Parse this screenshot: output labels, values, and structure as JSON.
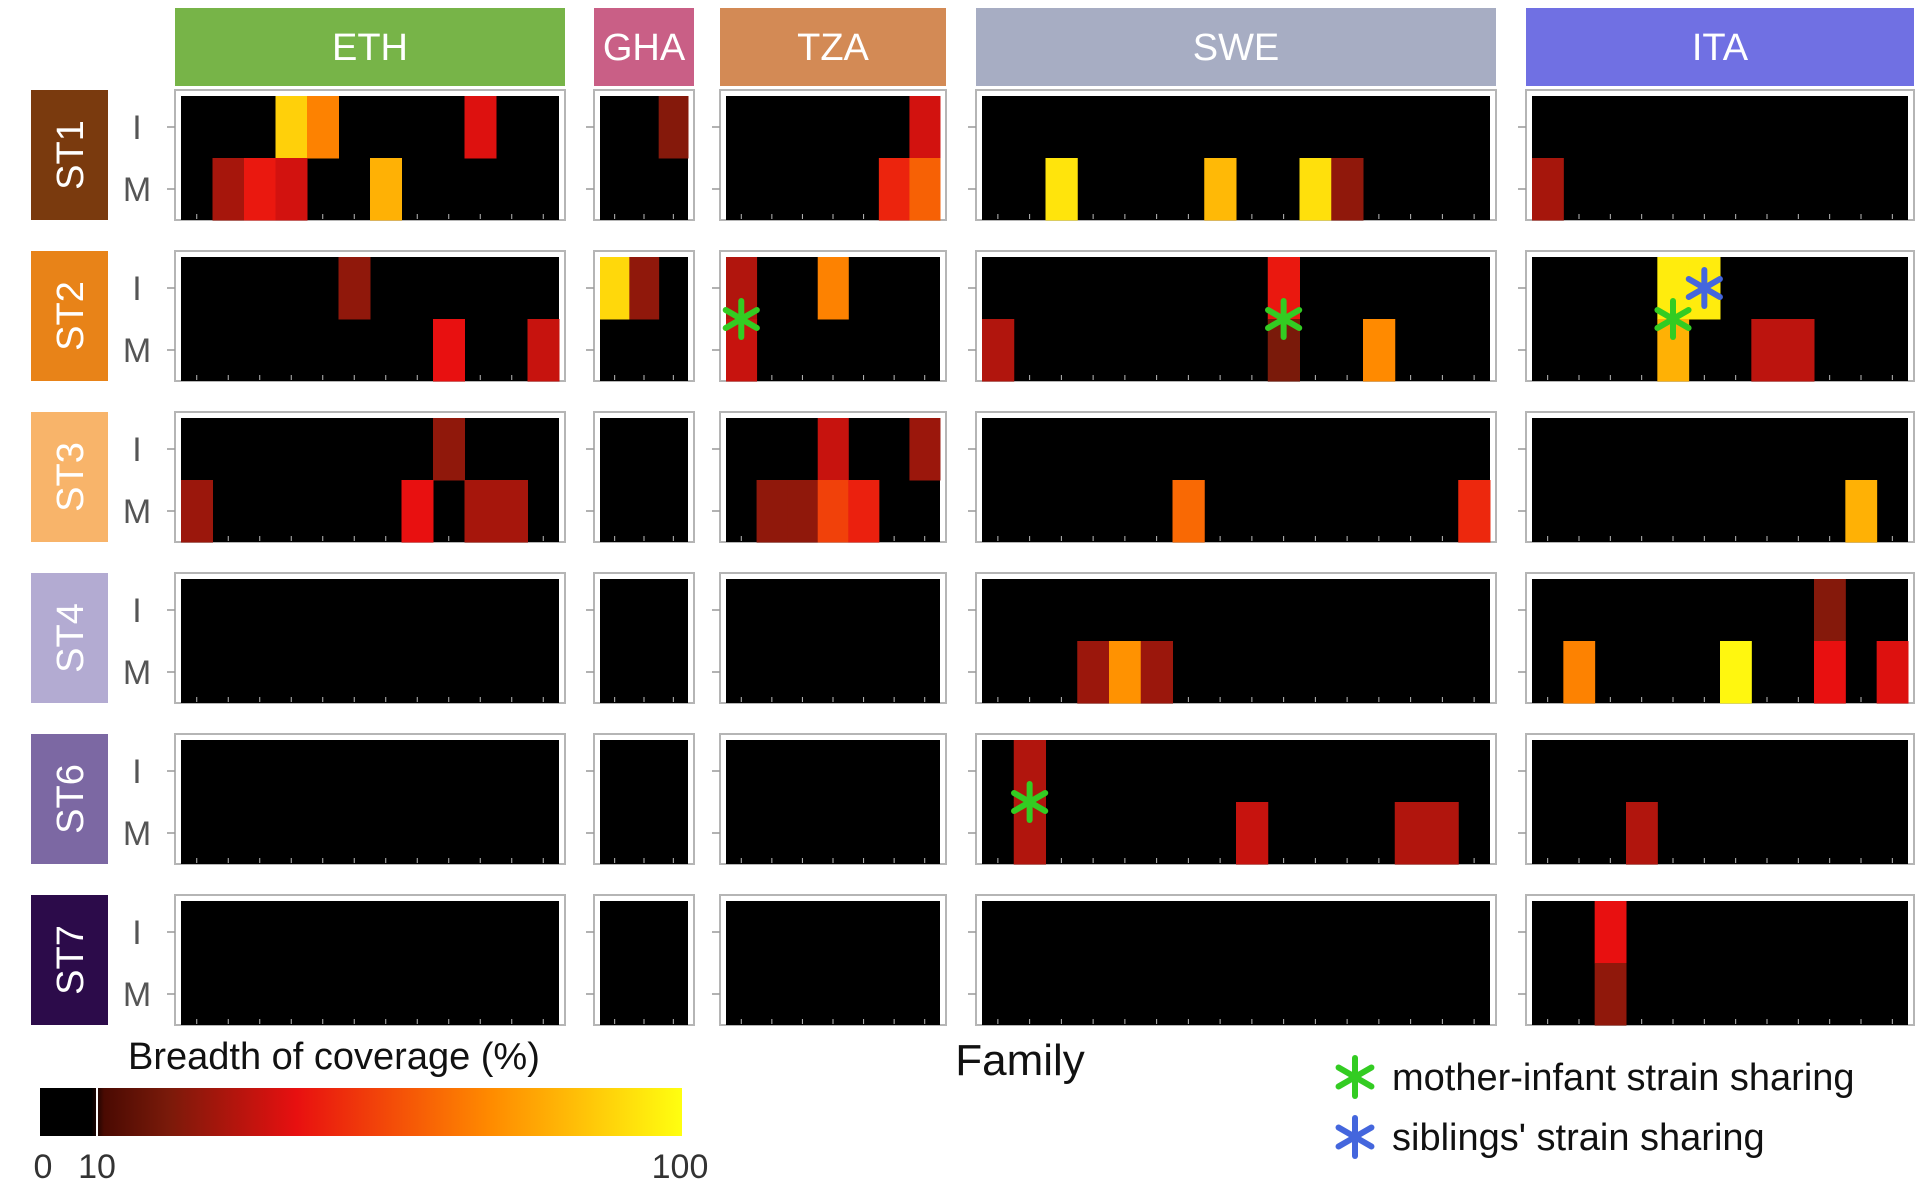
{
  "chart_data": {
    "type": "heatmap",
    "title": "",
    "xlabel": "Family",
    "ylabel": "",
    "value_range": [
      0,
      100
    ],
    "colorbar": {
      "title": "Breadth of coverage (%)",
      "ticks": [
        "0",
        "10",
        "100"
      ],
      "tick_values": [
        0,
        10,
        100
      ],
      "note": "values below 10% shown as black"
    },
    "country_groups": [
      {
        "name": "ETH",
        "color": "#77b448",
        "families": 12
      },
      {
        "name": "GHA",
        "color": "#c95f86",
        "families": 3
      },
      {
        "name": "TZA",
        "color": "#d38a55",
        "families": 7
      },
      {
        "name": "SWE",
        "color": "#a7adc3",
        "families": 16
      },
      {
        "name": "ITA",
        "color": "#7070e3",
        "families": 12
      }
    ],
    "strain_groups": [
      {
        "name": "ST1",
        "color": "#7a3a0e",
        "text_color": "#ffffff"
      },
      {
        "name": "ST2",
        "color": "#e88318",
        "text_color": "#ffffff"
      },
      {
        "name": "ST3",
        "color": "#f8b46a",
        "text_color": "#ffffff"
      },
      {
        "name": "ST4",
        "color": "#b3abd2",
        "text_color": "#ffffff"
      },
      {
        "name": "ST6",
        "color": "#7c68a3",
        "text_color": "#ffffff"
      },
      {
        "name": "ST7",
        "color": "#2c0b4a",
        "text_color": "#ffffff"
      }
    ],
    "row_labels": [
      "I",
      "M"
    ],
    "cells": [
      {
        "strain": "ST1",
        "country": "ETH",
        "member": "I",
        "family": 4,
        "value": 88
      },
      {
        "strain": "ST1",
        "country": "ETH",
        "member": "I",
        "family": 5,
        "value": 68
      },
      {
        "strain": "ST1",
        "country": "ETH",
        "member": "I",
        "family": 10,
        "value": 38
      },
      {
        "strain": "ST1",
        "country": "ETH",
        "member": "M",
        "family": 2,
        "value": 28
      },
      {
        "strain": "ST1",
        "country": "ETH",
        "member": "M",
        "family": 3,
        "value": 42
      },
      {
        "strain": "ST1",
        "country": "ETH",
        "member": "M",
        "family": 4,
        "value": 36
      },
      {
        "strain": "ST1",
        "country": "ETH",
        "member": "M",
        "family": 7,
        "value": 80
      },
      {
        "strain": "ST1",
        "country": "GHA",
        "member": "I",
        "family": 3,
        "value": 22
      },
      {
        "strain": "ST1",
        "country": "TZA",
        "member": "I",
        "family": 7,
        "value": 36
      },
      {
        "strain": "ST1",
        "country": "TZA",
        "member": "M",
        "family": 6,
        "value": 45
      },
      {
        "strain": "ST1",
        "country": "TZA",
        "member": "M",
        "family": 7,
        "value": 60
      },
      {
        "strain": "ST1",
        "country": "SWE",
        "member": "M",
        "family": 3,
        "value": 93
      },
      {
        "strain": "ST1",
        "country": "SWE",
        "member": "M",
        "family": 8,
        "value": 82
      },
      {
        "strain": "ST1",
        "country": "SWE",
        "member": "M",
        "family": 11,
        "value": 92
      },
      {
        "strain": "ST1",
        "country": "SWE",
        "member": "M",
        "family": 12,
        "value": 24
      },
      {
        "strain": "ST1",
        "country": "ITA",
        "member": "M",
        "family": 1,
        "value": 28
      },
      {
        "strain": "ST2",
        "country": "ETH",
        "member": "I",
        "family": 6,
        "value": 24
      },
      {
        "strain": "ST2",
        "country": "ETH",
        "member": "M",
        "family": 9,
        "value": 40
      },
      {
        "strain": "ST2",
        "country": "ETH",
        "member": "M",
        "family": 12,
        "value": 34
      },
      {
        "strain": "ST2",
        "country": "GHA",
        "member": "I",
        "family": 1,
        "value": 90
      },
      {
        "strain": "ST2",
        "country": "GHA",
        "member": "I",
        "family": 2,
        "value": 24
      },
      {
        "strain": "ST2",
        "country": "TZA",
        "member": "I",
        "family": 1,
        "value": 30
      },
      {
        "strain": "ST2",
        "country": "TZA",
        "member": "M",
        "family": 1,
        "value": 34
      },
      {
        "strain": "ST2",
        "country": "TZA",
        "member": "I",
        "family": 4,
        "value": 68
      },
      {
        "strain": "ST2",
        "country": "SWE",
        "member": "I",
        "family": 10,
        "value": 42
      },
      {
        "strain": "ST2",
        "country": "SWE",
        "member": "M",
        "family": 10,
        "value": 20
      },
      {
        "strain": "ST2",
        "country": "SWE",
        "member": "M",
        "family": 1,
        "value": 30
      },
      {
        "strain": "ST2",
        "country": "SWE",
        "member": "M",
        "family": 13,
        "value": 70
      },
      {
        "strain": "ST2",
        "country": "ITA",
        "member": "I",
        "family": 5,
        "value": 95
      },
      {
        "strain": "ST2",
        "country": "ITA",
        "member": "I",
        "family": 6,
        "value": 95
      },
      {
        "strain": "ST2",
        "country": "ITA",
        "member": "M",
        "family": 5,
        "value": 80
      },
      {
        "strain": "ST2",
        "country": "ITA",
        "member": "M",
        "family": 8,
        "value": 32
      },
      {
        "strain": "ST2",
        "country": "ITA",
        "member": "M",
        "family": 9,
        "value": 32
      },
      {
        "strain": "ST3",
        "country": "ETH",
        "member": "I",
        "family": 9,
        "value": 24
      },
      {
        "strain": "ST3",
        "country": "ETH",
        "member": "M",
        "family": 1,
        "value": 26
      },
      {
        "strain": "ST3",
        "country": "ETH",
        "member": "M",
        "family": 8,
        "value": 40
      },
      {
        "strain": "ST3",
        "country": "ETH",
        "member": "M",
        "family": 10,
        "value": 28
      },
      {
        "strain": "ST3",
        "country": "ETH",
        "member": "M",
        "family": 11,
        "value": 28
      },
      {
        "strain": "ST3",
        "country": "TZA",
        "member": "I",
        "family": 4,
        "value": 34
      },
      {
        "strain": "ST3",
        "country": "TZA",
        "member": "I",
        "family": 7,
        "value": 26
      },
      {
        "strain": "ST3",
        "country": "TZA",
        "member": "M",
        "family": 2,
        "value": 24
      },
      {
        "strain": "ST3",
        "country": "TZA",
        "member": "M",
        "family": 3,
        "value": 24
      },
      {
        "strain": "ST3",
        "country": "TZA",
        "member": "M",
        "family": 4,
        "value": 52
      },
      {
        "strain": "ST3",
        "country": "TZA",
        "member": "M",
        "family": 5,
        "value": 44
      },
      {
        "strain": "ST3",
        "country": "SWE",
        "member": "M",
        "family": 7,
        "value": 62
      },
      {
        "strain": "ST3",
        "country": "SWE",
        "member": "M",
        "family": 16,
        "value": 46
      },
      {
        "strain": "ST3",
        "country": "ITA",
        "member": "M",
        "family": 11,
        "value": 80
      },
      {
        "strain": "ST4",
        "country": "SWE",
        "member": "M",
        "family": 4,
        "value": 26
      },
      {
        "strain": "ST4",
        "country": "SWE",
        "member": "M",
        "family": 5,
        "value": 72
      },
      {
        "strain": "ST4",
        "country": "SWE",
        "member": "M",
        "family": 6,
        "value": 26
      },
      {
        "strain": "ST4",
        "country": "ITA",
        "member": "I",
        "family": 10,
        "value": 22
      },
      {
        "strain": "ST4",
        "country": "ITA",
        "member": "M",
        "family": 2,
        "value": 68
      },
      {
        "strain": "ST4",
        "country": "ITA",
        "member": "M",
        "family": 7,
        "value": 98
      },
      {
        "strain": "ST4",
        "country": "ITA",
        "member": "M",
        "family": 10,
        "value": 40
      },
      {
        "strain": "ST4",
        "country": "ITA",
        "member": "M",
        "family": 12,
        "value": 38
      },
      {
        "strain": "ST6",
        "country": "SWE",
        "member": "I",
        "family": 2,
        "value": 30
      },
      {
        "strain": "ST6",
        "country": "SWE",
        "member": "M",
        "family": 2,
        "value": 30
      },
      {
        "strain": "ST6",
        "country": "SWE",
        "member": "M",
        "family": 9,
        "value": 34
      },
      {
        "strain": "ST6",
        "country": "SWE",
        "member": "M",
        "family": 14,
        "value": 30
      },
      {
        "strain": "ST6",
        "country": "SWE",
        "member": "M",
        "family": 15,
        "value": 30
      },
      {
        "strain": "ST6",
        "country": "ITA",
        "member": "M",
        "family": 4,
        "value": 30
      },
      {
        "strain": "ST7",
        "country": "ITA",
        "member": "I",
        "family": 3,
        "value": 40
      },
      {
        "strain": "ST7",
        "country": "ITA",
        "member": "M",
        "family": 3,
        "value": 24
      }
    ],
    "markers": [
      {
        "type": "mother-infant",
        "strain": "ST2",
        "country": "TZA",
        "family": 1
      },
      {
        "type": "mother-infant",
        "strain": "ST2",
        "country": "SWE",
        "family": 10
      },
      {
        "type": "mother-infant",
        "strain": "ST2",
        "country": "ITA",
        "family": 5
      },
      {
        "type": "siblings",
        "strain": "ST2",
        "country": "ITA",
        "family": 6
      },
      {
        "type": "mother-infant",
        "strain": "ST6",
        "country": "SWE",
        "family": 2
      }
    ],
    "legend": [
      {
        "type": "mother-infant",
        "label": "mother-infant strain sharing",
        "color": "#33cc22"
      },
      {
        "type": "siblings",
        "label": "siblings' strain sharing",
        "color": "#4466dd"
      }
    ]
  }
}
